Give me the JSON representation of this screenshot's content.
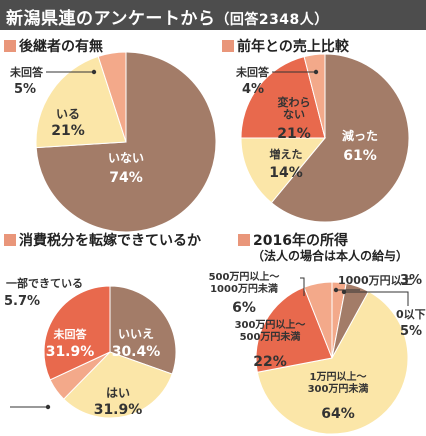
{
  "header": {
    "title": "新潟県連のアンケートから",
    "subtitle": "（回答2348人）"
  },
  "colors": {
    "dark": "#a37c68",
    "yellow": "#fbe6a8",
    "orange": "#e8694d",
    "salmon": "#f3a98a"
  },
  "chart_data": [
    {
      "type": "pie",
      "title": "後継者の有無",
      "slices": [
        {
          "label": "いない",
          "value": 74,
          "display": "74%"
        },
        {
          "label": "いる",
          "value": 21,
          "display": "21%"
        },
        {
          "label": "未回答",
          "value": 5,
          "display": "5%"
        }
      ]
    },
    {
      "type": "pie",
      "title": "前年との売上比較",
      "slices": [
        {
          "label": "減った",
          "value": 61,
          "display": "61%"
        },
        {
          "label": "増えた",
          "value": 14,
          "display": "14%"
        },
        {
          "label": "変わらない",
          "value": 21,
          "display": "21%"
        },
        {
          "label": "未回答",
          "value": 4,
          "display": "4%"
        }
      ]
    },
    {
      "type": "pie",
      "title": "消費税分を転嫁できているか",
      "slices": [
        {
          "label": "いいえ",
          "value": 30.4,
          "display": "30.4%"
        },
        {
          "label": "はい",
          "value": 31.9,
          "display": "31.9%"
        },
        {
          "label": "一部できている",
          "value": 5.7,
          "display": "5.7%"
        },
        {
          "label": "未回答",
          "value": 31.9,
          "display": "31.9%"
        }
      ]
    },
    {
      "type": "pie",
      "title": "2016年の所得",
      "subtitle": "（法人の場合は本人の給与）",
      "slices": [
        {
          "label": "1000万円以上",
          "value": 3,
          "display": "3%"
        },
        {
          "label": "0以下",
          "value": 5,
          "display": "5%"
        },
        {
          "label": "1万円以上～300万円未満",
          "value": 64,
          "display": "64%"
        },
        {
          "label": "300万円以上～500万円未満",
          "value": 22,
          "display": "22%"
        },
        {
          "label": "500万円以上～1000万円未満",
          "value": 6,
          "display": "6%"
        }
      ]
    }
  ]
}
